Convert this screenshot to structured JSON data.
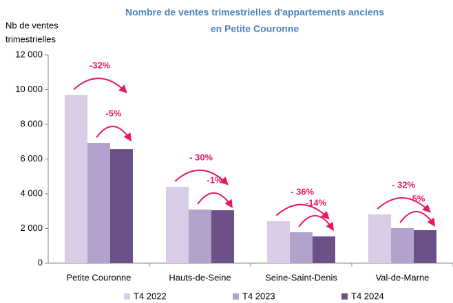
{
  "chart_data": {
    "type": "bar",
    "title": [
      "Nombre de ventes trimestrielles d'appartements anciens",
      "en Petite Couronne"
    ],
    "y_label": [
      "Nb de ventes",
      "trimestrielles"
    ],
    "categories": [
      "Petite Couronne",
      "Hauts-de-Seine",
      "Seine-Saint-Denis",
      "Val-de-Marne"
    ],
    "series": [
      {
        "name": "T4 2022",
        "color": "#d9cce6",
        "values": [
          9700,
          4400,
          2420,
          2810
        ]
      },
      {
        "name": "T4 2023",
        "color": "#b3a3cc",
        "values": [
          6930,
          3090,
          1780,
          2020
        ]
      },
      {
        "name": "T4 2024",
        "color": "#6b5187",
        "values": [
          6570,
          3050,
          1540,
          1900
        ]
      }
    ],
    "annotations": [
      [
        "-32%",
        "-5%"
      ],
      [
        "- 30%",
        "-1%"
      ],
      [
        "- 36%",
        "-14%"
      ],
      [
        "- 32%",
        "-5%"
      ]
    ],
    "annotation_color": "#e8185f",
    "ylim": [
      0,
      12000
    ],
    "yticks": [
      0,
      {
        "value": 2000,
        "label": "2 000"
      },
      {
        "value": 4000,
        "label": "4 000"
      },
      {
        "value": 6000,
        "label": "6 000"
      },
      {
        "value": 8000,
        "label": "8 000"
      },
      {
        "value": 10000,
        "label": "10 000"
      },
      {
        "value": 12000,
        "label": "12 000"
      }
    ],
    "grid": false,
    "legend": "bottom"
  }
}
